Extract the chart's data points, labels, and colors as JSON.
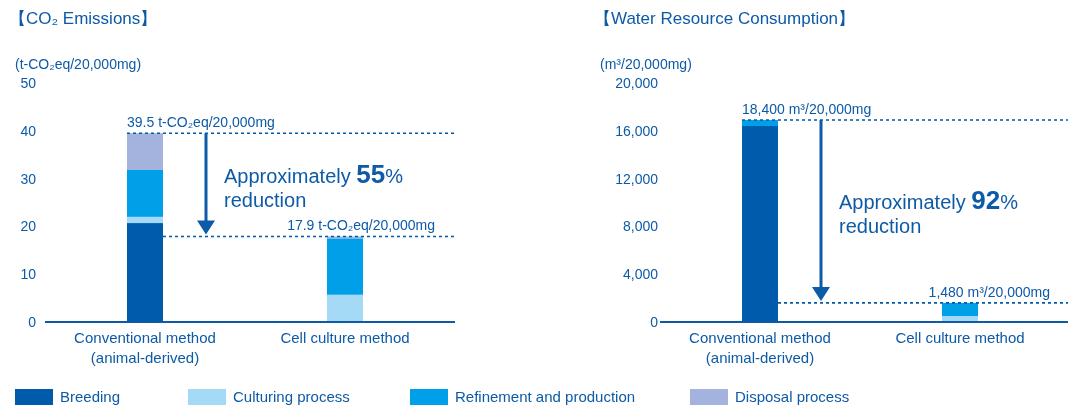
{
  "chart_data": [
    {
      "type": "bar",
      "stacked": true,
      "title": "【CO₂ Emissions】",
      "ylabel": "(t-CO₂eq/20,000mg)",
      "categories": [
        "Conventional method (animal-derived)",
        "Cell culture method"
      ],
      "series": [
        {
          "name": "Breeding",
          "color": "#005bac",
          "values": [
            20.7,
            0
          ]
        },
        {
          "name": "Culturing process",
          "color": "#a4daf5",
          "values": [
            1.3,
            5.7
          ]
        },
        {
          "name": "Refinement and production",
          "color": "#00a0e9",
          "values": [
            9.8,
            11.8
          ]
        },
        {
          "name": "Disposal process",
          "color": "#a3b3dd",
          "values": [
            7.7,
            0.4
          ]
        }
      ],
      "ylim": [
        0,
        50
      ],
      "yticks": [
        0,
        10,
        20,
        30,
        40,
        50
      ],
      "ref_lines": [
        {
          "axis": "y",
          "value": 39.5,
          "label": "39.5 t-CO₂eq/20,000mg",
          "line_style": "dotted",
          "color": "#005bac"
        },
        {
          "axis": "y",
          "value": 17.9,
          "label": "17.9 t-CO₂eq/20,000mg",
          "line_style": "dotted",
          "color": "#005bac"
        }
      ],
      "annotations": [
        "Approximately **55**% reduction"
      ],
      "legend": "bottom"
    },
    {
      "type": "bar",
      "stacked": true,
      "title": "【Water Resource Consumption】",
      "ylabel": "(m³/20,000mg)",
      "categories": [
        "Conventional method (animal-derived)",
        "Cell culture method"
      ],
      "series": [
        {
          "color": "#005bac",
          "values": [
            16400,
            0
          ]
        },
        {
          "color": "#a4daf5",
          "values": [
            0,
            500
          ]
        },
        {
          "color": "#00a0e9",
          "values": [
            500,
            1100
          ]
        }
      ],
      "ylim": [
        0,
        20000
      ],
      "yticks": [
        0,
        {
          "value": 4000,
          "label": "4,000"
        },
        {
          "value": 8000,
          "label": "8,000"
        },
        {
          "value": 12000,
          "label": "12,000"
        },
        {
          "value": 16000,
          "label": "16,000"
        },
        {
          "value": 20000,
          "label": "20,000"
        }
      ],
      "ref_lines": [
        {
          "axis": "y",
          "value": 16900,
          "label": "18,400 m³/20,000mg",
          "line_style": "dotted",
          "color": "#005bac"
        },
        {
          "axis": "y",
          "value": 1600,
          "label": "1,480 m³/20,000mg",
          "line_style": "dotted",
          "color": "#005bac"
        }
      ],
      "annotations": [
        "Approximately **92**% reduction"
      ]
    }
  ]
}
